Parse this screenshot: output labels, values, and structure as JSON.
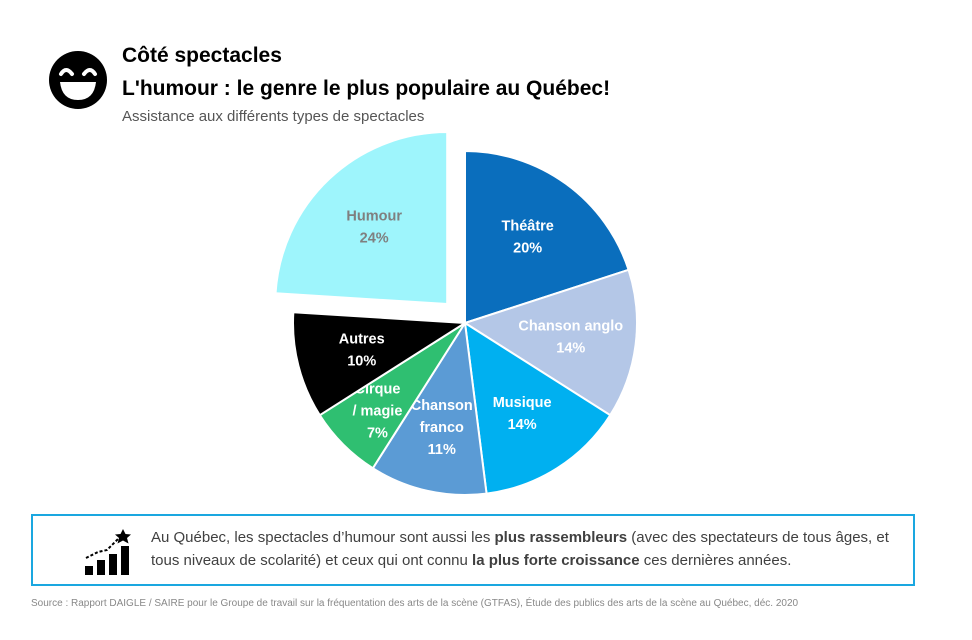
{
  "header": {
    "title": "Côté spectacles",
    "headline": "L'humour : le genre le plus populaire au Québec!",
    "subtitle": "Assistance aux différents types de spectacles"
  },
  "icons": {
    "header": "laughing-face-icon",
    "note": "growth-chart-star-icon"
  },
  "chart_data": {
    "type": "pie",
    "title": "L'humour : le genre le plus populaire au Québec!",
    "subtitle": "Assistance aux différents types de spectacles",
    "exploded": "Humour",
    "slices": [
      {
        "name": "Théâtre",
        "lines": [
          "Théâtre"
        ],
        "value": 20,
        "label": "20%",
        "color": "#0a6ebd",
        "text_color": "#ffffff"
      },
      {
        "name": "Chanson anglo",
        "lines": [
          "Chanson anglo"
        ],
        "value": 14,
        "label": "14%",
        "color": "#b4c7e7",
        "text_color": "#ffffff"
      },
      {
        "name": "Musique",
        "lines": [
          "Musique"
        ],
        "value": 14,
        "label": "14%",
        "color": "#00b0f0",
        "text_color": "#ffffff"
      },
      {
        "name": "Chanson franco",
        "lines": [
          "Chanson",
          "franco"
        ],
        "value": 11,
        "label": "11%",
        "color": "#5b9bd5",
        "text_color": "#ffffff"
      },
      {
        "name": "Cirque / magie",
        "lines": [
          "Cirque",
          "/ magie"
        ],
        "value": 7,
        "label": "7%",
        "color": "#2fbf71",
        "text_color": "#ffffff"
      },
      {
        "name": "Autres",
        "lines": [
          "Autres"
        ],
        "value": 10,
        "label": "10%",
        "color": "#000000",
        "text_color": "#ffffff"
      },
      {
        "name": "Humour",
        "lines": [
          "Humour"
        ],
        "value": 24,
        "label": "24%",
        "color": "#9ef5fc",
        "text_color": "#7f7f7f"
      }
    ]
  },
  "note": {
    "text_1": "Au Québec, les spectacles d’humour sont aussi les ",
    "bold_1": "plus rassembleurs",
    "text_2": " (avec des spectateurs de tous âges, et tous niveaux de scolarité) et ceux qui ont connu ",
    "bold_2": "la plus forte croissance",
    "text_3": " ces dernières années."
  },
  "source": "Source :  Rapport DAIGLE / SAIRE pour le Groupe de travail sur la fréquentation des arts de la scène (GTFAS), Étude des publics des arts de la scène au Québec, déc. 2020"
}
